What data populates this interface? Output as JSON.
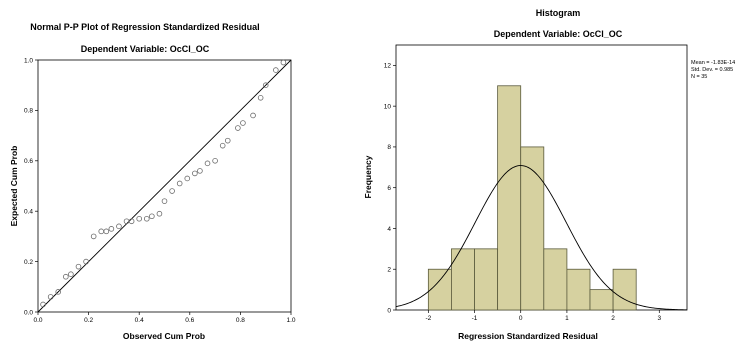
{
  "chart_data": [
    {
      "type": "scatter",
      "title": "Normal P-P Plot of Regression Standardized Residual",
      "subtitle": "Dependent Variable: OcCl_OC",
      "xlabel": "Observed Cum Prob",
      "ylabel": "Expected Cum Prob",
      "xlim": [
        0,
        1
      ],
      "ylim": [
        0,
        1
      ],
      "x_ticks": [
        "0.0",
        "0.2",
        "0.4",
        "0.6",
        "0.8",
        "1.0"
      ],
      "y_ticks": [
        "0.0",
        "0.2",
        "0.4",
        "0.6",
        "0.8",
        "1.0"
      ],
      "reference_line": [
        [
          0,
          0
        ],
        [
          1,
          1
        ]
      ],
      "points": [
        [
          0.02,
          0.03
        ],
        [
          0.05,
          0.06
        ],
        [
          0.08,
          0.08
        ],
        [
          0.11,
          0.14
        ],
        [
          0.13,
          0.15
        ],
        [
          0.16,
          0.18
        ],
        [
          0.19,
          0.2
        ],
        [
          0.22,
          0.3
        ],
        [
          0.25,
          0.32
        ],
        [
          0.27,
          0.32
        ],
        [
          0.29,
          0.33
        ],
        [
          0.32,
          0.34
        ],
        [
          0.35,
          0.36
        ],
        [
          0.37,
          0.36
        ],
        [
          0.4,
          0.37
        ],
        [
          0.43,
          0.37
        ],
        [
          0.45,
          0.38
        ],
        [
          0.48,
          0.39
        ],
        [
          0.5,
          0.44
        ],
        [
          0.53,
          0.48
        ],
        [
          0.56,
          0.51
        ],
        [
          0.59,
          0.53
        ],
        [
          0.62,
          0.55
        ],
        [
          0.64,
          0.56
        ],
        [
          0.67,
          0.59
        ],
        [
          0.7,
          0.6
        ],
        [
          0.73,
          0.66
        ],
        [
          0.75,
          0.68
        ],
        [
          0.79,
          0.73
        ],
        [
          0.81,
          0.75
        ],
        [
          0.85,
          0.78
        ],
        [
          0.88,
          0.85
        ],
        [
          0.9,
          0.9
        ],
        [
          0.94,
          0.96
        ],
        [
          0.97,
          0.99
        ]
      ],
      "colors": {
        "points": "#6b6b6b",
        "line": "#000000"
      }
    },
    {
      "type": "bar",
      "title": "Histogram",
      "subtitle": "Dependent Variable: OcCl_OC",
      "xlabel": "Regression Standardized Residual",
      "ylabel": "Frequency",
      "xlim": [
        -2.7,
        3.6
      ],
      "ylim": [
        0,
        13
      ],
      "x_ticks": [
        -2,
        -1,
        0,
        1,
        2,
        3
      ],
      "y_ticks": [
        0,
        2,
        4,
        6,
        8,
        10,
        12
      ],
      "bin_edges": [
        -2.0,
        -1.5,
        -1.0,
        -0.5,
        0.0,
        0.5,
        1.0,
        1.5,
        2.0,
        2.5
      ],
      "values": [
        2,
        3,
        3,
        11,
        8,
        3,
        2,
        1,
        2
      ],
      "normal_curve": {
        "mean": 0,
        "sd": 0.985,
        "n": 35,
        "bin_width": 0.5
      },
      "stats": [
        "Mean = -1.83E-14",
        "Std. Dev. = 0.985",
        "N = 35"
      ],
      "colors": {
        "bar_fill": "#d6d1a0",
        "bar_stroke": "#5a5a3c",
        "curve": "#000000"
      }
    }
  ]
}
